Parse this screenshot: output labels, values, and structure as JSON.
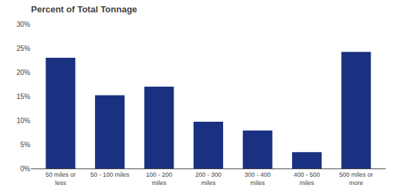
{
  "chart_data": {
    "type": "bar",
    "title": "Percent of Total Tonnage",
    "categories": [
      "50 miles or\nless",
      "50 - 100 miles",
      "100 - 200\nmiles",
      "200 - 300\nmiles",
      "300 - 400\nmiles",
      "400 - 500\nmiles",
      "500 miles or\nmore"
    ],
    "values": [
      23,
      15.2,
      17,
      9.7,
      7.9,
      3.4,
      24.2
    ],
    "color": "#1a3080",
    "ylim": [
      0,
      30
    ],
    "yticks": [
      {
        "value": 0,
        "label": "0%"
      },
      {
        "value": 5,
        "label": "5%"
      },
      {
        "value": 10,
        "label": "10%"
      },
      {
        "value": 15,
        "label": "15%"
      },
      {
        "value": 20,
        "label": "20%"
      },
      {
        "value": 25,
        "label": "25%"
      },
      {
        "value": 30,
        "label": "30%"
      }
    ],
    "grid": false
  }
}
